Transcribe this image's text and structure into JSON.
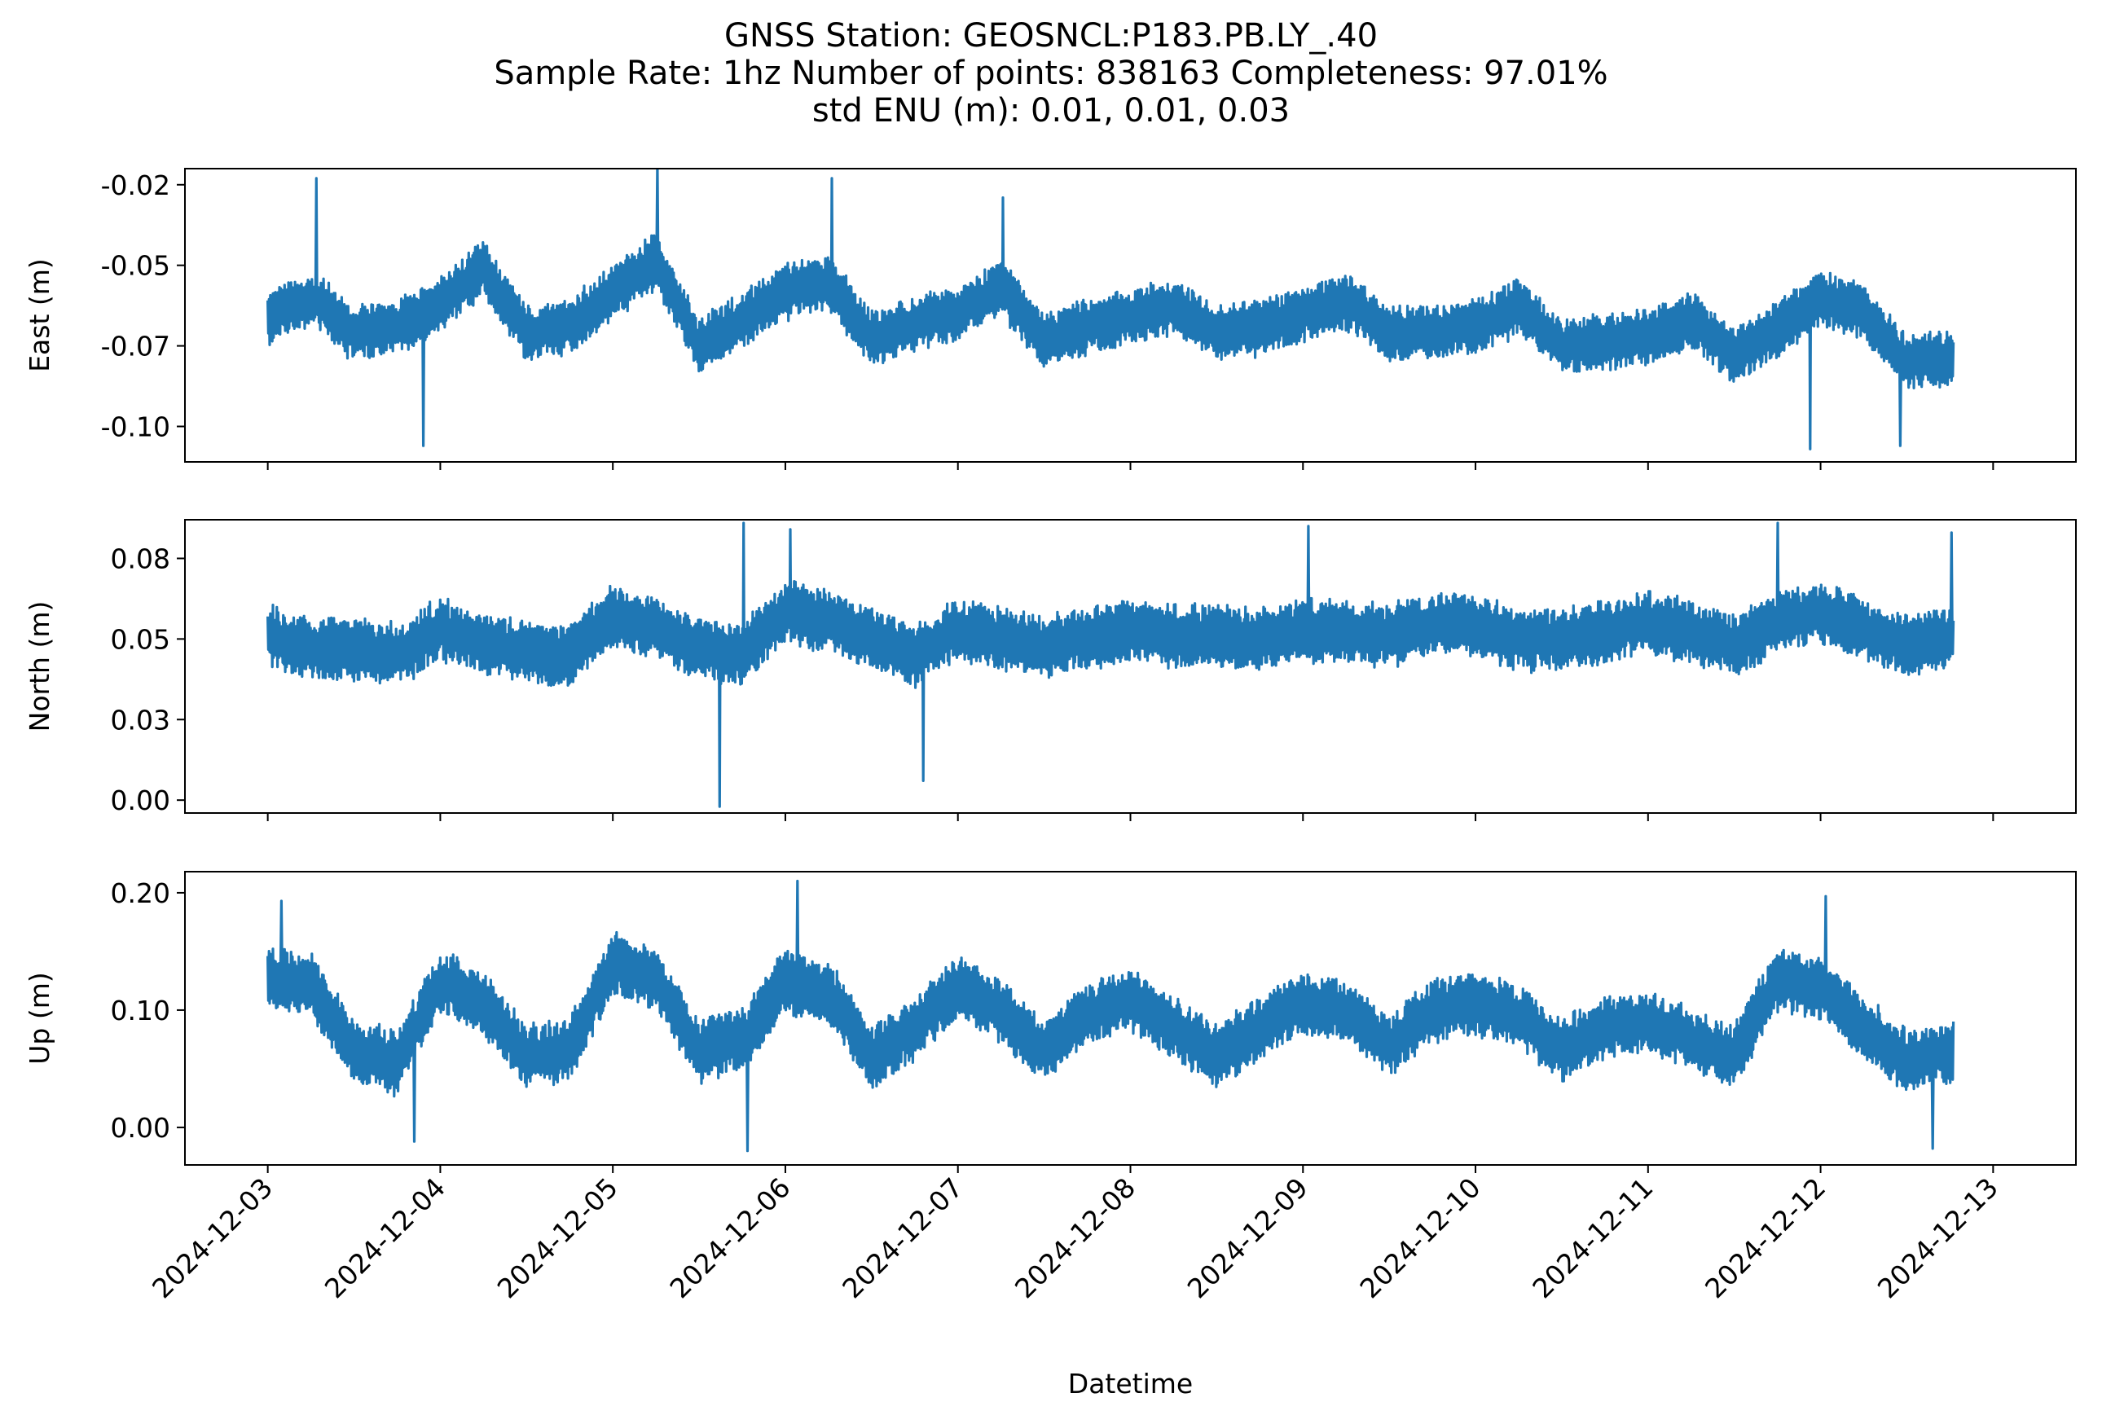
{
  "chart_data": {
    "type": "line",
    "title_lines": [
      "GNSS Station: GEOSNCL:P183.PB.LY_.40",
      "Sample Rate: 1hz   Number of points: 838163    Completeness:  97.01%",
      "std ENU (m):  0.01, 0.01, 0.03"
    ],
    "xlabel": "Datetime",
    "x_range_days": [
      -0.48,
      10.48
    ],
    "x_tick_labels": [
      "2024-12-03",
      "2024-12-04",
      "2024-12-05",
      "2024-12-06",
      "2024-12-07",
      "2024-12-08",
      "2024-12-09",
      "2024-12-10",
      "2024-12-11",
      "2024-12-12",
      "2024-12-13"
    ],
    "data_end_day": 9.77,
    "series_color": "#1f77b4",
    "panels": [
      {
        "name": "East",
        "ylabel": "East (m)",
        "ylim": [
          -0.106,
          -0.015
        ],
        "ticks": [
          {
            "value": -0.02,
            "label": "-0.02"
          },
          {
            "value": -0.045,
            "label": "-0.05"
          },
          {
            "value": -0.07,
            "label": "-0.07"
          },
          {
            "value": -0.095,
            "label": "-0.10"
          }
        ],
        "envelope_days": [
          0.0,
          0.25,
          0.5,
          0.75,
          1.0,
          1.25,
          1.5,
          1.75,
          2.0,
          2.25,
          2.5,
          2.75,
          3.0,
          3.25,
          3.5,
          3.75,
          4.0,
          4.25,
          4.5,
          4.75,
          5.0,
          5.25,
          5.5,
          5.75,
          6.0,
          6.25,
          6.5,
          6.75,
          7.0,
          7.25,
          7.5,
          7.75,
          8.0,
          8.25,
          8.5,
          8.75,
          9.0,
          9.25,
          9.5,
          9.77
        ],
        "envelope_mid": [
          -0.061,
          -0.055,
          -0.066,
          -0.064,
          -0.057,
          -0.046,
          -0.066,
          -0.064,
          -0.053,
          -0.044,
          -0.07,
          -0.062,
          -0.053,
          -0.05,
          -0.068,
          -0.063,
          -0.06,
          -0.052,
          -0.068,
          -0.064,
          -0.061,
          -0.058,
          -0.066,
          -0.064,
          -0.06,
          -0.056,
          -0.066,
          -0.066,
          -0.064,
          -0.058,
          -0.07,
          -0.069,
          -0.067,
          -0.062,
          -0.073,
          -0.065,
          -0.055,
          -0.06,
          -0.075,
          -0.074
        ],
        "noise_amplitude": 0.008,
        "extremes": [
          {
            "day": 0.28,
            "value": -0.018
          },
          {
            "day": 0.9,
            "value": -0.101
          },
          {
            "day": 2.26,
            "value": -0.014
          },
          {
            "day": 3.27,
            "value": -0.018
          },
          {
            "day": 4.26,
            "value": -0.024
          },
          {
            "day": 8.94,
            "value": -0.102
          },
          {
            "day": 9.46,
            "value": -0.101
          }
        ]
      },
      {
        "name": "North",
        "ylabel": "North (m)",
        "ylim": [
          0.001,
          0.092
        ],
        "ticks": [
          {
            "value": 0.08,
            "label": "0.08"
          },
          {
            "value": 0.055,
            "label": "0.05"
          },
          {
            "value": 0.03,
            "label": "0.03"
          },
          {
            "value": 0.005,
            "label": "0.00"
          }
        ],
        "envelope_days": [
          0.0,
          0.25,
          0.5,
          0.75,
          1.0,
          1.25,
          1.5,
          1.75,
          2.0,
          2.25,
          2.5,
          2.75,
          3.0,
          3.25,
          3.5,
          3.75,
          4.0,
          4.25,
          4.5,
          4.75,
          5.0,
          5.25,
          5.5,
          5.75,
          6.0,
          6.25,
          6.5,
          6.75,
          7.0,
          7.25,
          7.5,
          7.75,
          8.0,
          8.25,
          8.5,
          8.75,
          9.0,
          9.25,
          9.5,
          9.77
        ],
        "envelope_mid": [
          0.056,
          0.052,
          0.052,
          0.05,
          0.058,
          0.053,
          0.051,
          0.05,
          0.062,
          0.058,
          0.052,
          0.05,
          0.063,
          0.061,
          0.055,
          0.05,
          0.058,
          0.055,
          0.053,
          0.055,
          0.058,
          0.056,
          0.056,
          0.055,
          0.058,
          0.057,
          0.056,
          0.06,
          0.059,
          0.055,
          0.055,
          0.057,
          0.06,
          0.057,
          0.053,
          0.06,
          0.063,
          0.058,
          0.053,
          0.055
        ],
        "noise_amplitude": 0.009,
        "extremes": [
          {
            "day": 2.62,
            "value": 0.003
          },
          {
            "day": 2.76,
            "value": 0.091
          },
          {
            "day": 3.03,
            "value": 0.089
          },
          {
            "day": 3.8,
            "value": 0.011
          },
          {
            "day": 6.03,
            "value": 0.09
          },
          {
            "day": 8.75,
            "value": 0.091
          },
          {
            "day": 9.76,
            "value": 0.088
          }
        ]
      },
      {
        "name": "Up",
        "ylabel": "Up (m)",
        "ylim": [
          -0.032,
          0.218
        ],
        "ticks": [
          {
            "value": 0.2,
            "label": "0.20"
          },
          {
            "value": 0.1,
            "label": "0.10"
          },
          {
            "value": 0.0,
            "label": "0.00"
          }
        ],
        "envelope_days": [
          0.0,
          0.25,
          0.5,
          0.75,
          1.0,
          1.25,
          1.5,
          1.75,
          2.0,
          2.25,
          2.5,
          2.75,
          3.0,
          3.25,
          3.5,
          3.75,
          4.0,
          4.25,
          4.5,
          4.75,
          5.0,
          5.25,
          5.5,
          5.75,
          6.0,
          6.25,
          6.5,
          6.75,
          7.0,
          7.25,
          7.5,
          7.75,
          8.0,
          8.25,
          8.5,
          8.75,
          9.0,
          9.25,
          9.5,
          9.77
        ],
        "envelope_mid": [
          0.13,
          0.12,
          0.065,
          0.055,
          0.125,
          0.105,
          0.06,
          0.065,
          0.14,
          0.125,
          0.065,
          0.075,
          0.125,
          0.115,
          0.06,
          0.085,
          0.12,
          0.1,
          0.065,
          0.095,
          0.11,
          0.085,
          0.06,
          0.085,
          0.105,
          0.1,
          0.07,
          0.1,
          0.105,
          0.095,
          0.065,
          0.085,
          0.09,
          0.075,
          0.06,
          0.125,
          0.12,
          0.085,
          0.055,
          0.065
        ],
        "noise_amplitude": 0.025,
        "extremes": [
          {
            "day": 0.08,
            "value": 0.193
          },
          {
            "day": 0.85,
            "value": -0.012
          },
          {
            "day": 3.07,
            "value": 0.21
          },
          {
            "day": 2.78,
            "value": -0.02
          },
          {
            "day": 9.03,
            "value": 0.197
          },
          {
            "day": 9.65,
            "value": -0.018
          }
        ]
      }
    ]
  }
}
